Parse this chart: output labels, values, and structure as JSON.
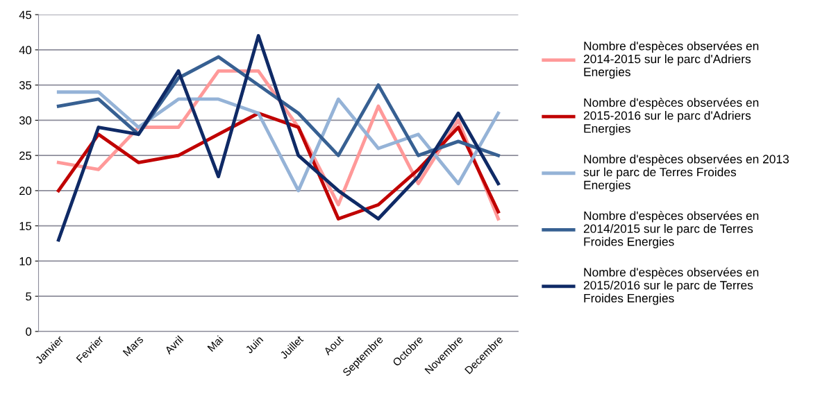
{
  "chart_data": {
    "type": "line",
    "categories": [
      "Janvier",
      "Fevrier",
      "Mars",
      "Avril",
      "Mai",
      "Juin",
      "Juillet",
      "Aout",
      "Septembre",
      "Octobre",
      "Novembre",
      "Decembre"
    ],
    "series": [
      {
        "name": "Nombre d'espèces observées en 2014-2015 sur le parc d'Adriers Energies",
        "color": "#ff9999",
        "values": [
          24,
          23,
          29,
          29,
          37,
          37,
          29,
          18,
          32,
          21,
          30,
          16
        ]
      },
      {
        "name": "Nombre d'espèces observées en 2015-2016 sur le parc d'Adriers Energies",
        "color": "#c00000",
        "values": [
          20,
          28,
          24,
          25,
          28,
          31,
          29,
          16,
          18,
          23,
          29,
          17
        ]
      },
      {
        "name": "Nombre d'espèces observées en 2013 sur le parc de Terres Froides Energies",
        "color": "#95b3d7",
        "values": [
          34,
          34,
          29,
          33,
          33,
          31,
          20,
          33,
          26,
          28,
          21,
          31
        ]
      },
      {
        "name": "Nombre d'espèces observées en 2014/2015 sur le parc de Terres Froides Energies",
        "color": "#376092",
        "values": [
          32,
          33,
          28,
          36,
          39,
          35,
          31,
          25,
          35,
          25,
          27,
          25
        ]
      },
      {
        "name": "Nombre d'espèces observées en 2015/2016 sur le parc de Terres Froides Energies",
        "color": "#0f2a66",
        "values": [
          13,
          29,
          28,
          37,
          22,
          42,
          25,
          20,
          16,
          22,
          31,
          21
        ]
      }
    ],
    "ylim": [
      0,
      45
    ],
    "yticks": [
      0,
      5,
      10,
      15,
      20,
      25,
      30,
      35,
      40,
      45
    ],
    "grid": "y",
    "legend": "right",
    "marker": "none",
    "line_style": "solid"
  }
}
